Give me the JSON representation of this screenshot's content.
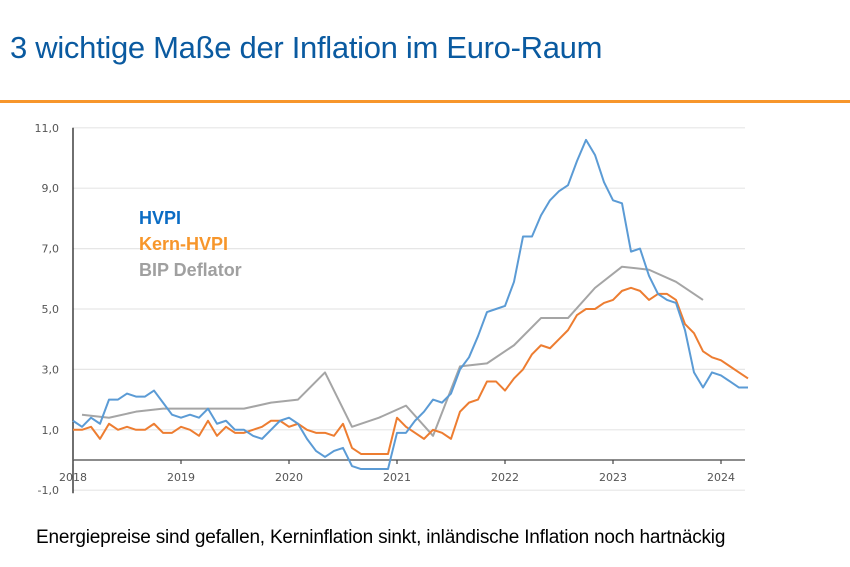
{
  "page": {
    "title": "3 wichtige Maße der Inflation im Euro-Raum",
    "caption": "Energiepreise sind gefallen, Kerninflation sinkt, inländische Inflation noch hartnäckig",
    "accent_color": "#f7962b",
    "title_color": "#0a5aa0"
  },
  "chart_data": {
    "type": "line",
    "title": "",
    "xlabel": "",
    "ylabel": "",
    "ylim": [
      -1,
      11
    ],
    "yticks": [
      "11,0",
      "9,0",
      "7,0",
      "5,0",
      "3,0",
      "1,0",
      "-1,0"
    ],
    "ytick_values": [
      11,
      9,
      7,
      5,
      3,
      1,
      -1
    ],
    "xticks": [
      "2018",
      "2019",
      "2020",
      "2021",
      "2022",
      "2023",
      "2024"
    ],
    "x_start": "2018-01",
    "x_unit": "month",
    "grid": true,
    "legend_position": "top-left (inside plot)",
    "series": [
      {
        "name": "HVPI",
        "color": "#5b9bd5",
        "legend_color": "#0a6cc4",
        "frequency": "monthly",
        "values": [
          1.3,
          1.1,
          1.4,
          1.2,
          2.0,
          2.0,
          2.2,
          2.1,
          2.1,
          2.3,
          1.9,
          1.5,
          1.4,
          1.5,
          1.4,
          1.7,
          1.2,
          1.3,
          1.0,
          1.0,
          0.8,
          0.7,
          1.0,
          1.3,
          1.4,
          1.2,
          0.7,
          0.3,
          0.1,
          0.3,
          0.4,
          -0.2,
          -0.3,
          -0.3,
          -0.3,
          -0.3,
          0.9,
          0.9,
          1.3,
          1.6,
          2.0,
          1.9,
          2.2,
          3.0,
          3.4,
          4.1,
          4.9,
          5.0,
          5.1,
          5.9,
          7.4,
          7.4,
          8.1,
          8.6,
          8.9,
          9.1,
          9.9,
          10.6,
          10.1,
          9.2,
          8.6,
          8.5,
          6.9,
          7.0,
          6.1,
          5.5,
          5.3,
          5.2,
          4.3,
          2.9,
          2.4,
          2.9,
          2.8,
          2.6,
          2.4,
          2.4
        ]
      },
      {
        "name": "Kern-HVPI",
        "color": "#ed7d31",
        "legend_color": "#f7962b",
        "frequency": "monthly",
        "values": [
          1.0,
          1.0,
          1.1,
          0.7,
          1.2,
          1.0,
          1.1,
          1.0,
          1.0,
          1.2,
          0.9,
          0.9,
          1.1,
          1.0,
          0.8,
          1.3,
          0.8,
          1.1,
          0.9,
          0.9,
          1.0,
          1.1,
          1.3,
          1.3,
          1.1,
          1.2,
          1.0,
          0.9,
          0.9,
          0.8,
          1.2,
          0.4,
          0.2,
          0.2,
          0.2,
          0.2,
          1.4,
          1.1,
          0.9,
          0.7,
          1.0,
          0.9,
          0.7,
          1.6,
          1.9,
          2.0,
          2.6,
          2.6,
          2.3,
          2.7,
          3.0,
          3.5,
          3.8,
          3.7,
          4.0,
          4.3,
          4.8,
          5.0,
          5.0,
          5.2,
          5.3,
          5.6,
          5.7,
          5.6,
          5.3,
          5.5,
          5.5,
          5.3,
          4.5,
          4.2,
          3.6,
          3.4,
          3.3,
          3.1,
          2.9,
          2.7
        ]
      },
      {
        "name": "BIP Deflator",
        "color": "#a5a5a5",
        "legend_color": "#a0a0a0",
        "frequency": "quarterly",
        "values": [
          1.5,
          1.4,
          1.6,
          1.7,
          1.7,
          1.7,
          1.7,
          1.9,
          2.0,
          2.9,
          1.1,
          1.4,
          1.8,
          0.8,
          3.1,
          3.2,
          3.8,
          4.7,
          4.7,
          5.7,
          6.4,
          6.3,
          5.9,
          5.3
        ]
      }
    ]
  }
}
